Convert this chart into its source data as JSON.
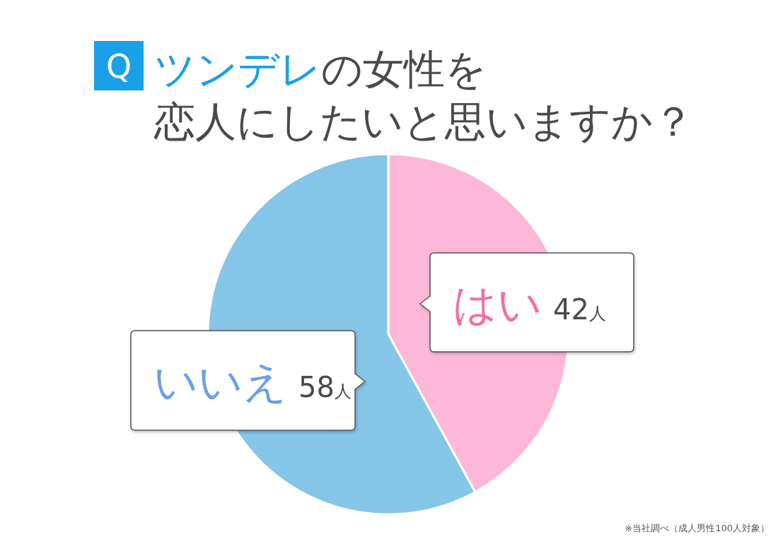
{
  "chart_data": {
    "type": "pie",
    "title": "Q ツンデレの女性を恋人にしたいと思いますか？",
    "categories": [
      "はい",
      "いいえ"
    ],
    "values": [
      42,
      58
    ],
    "colors": [
      "#fdb8d8",
      "#85c6e9"
    ],
    "value_labels": [
      "42人",
      "58人"
    ],
    "annotations": [
      "※当社調べ（成人男性100人対象）"
    ]
  }
}
